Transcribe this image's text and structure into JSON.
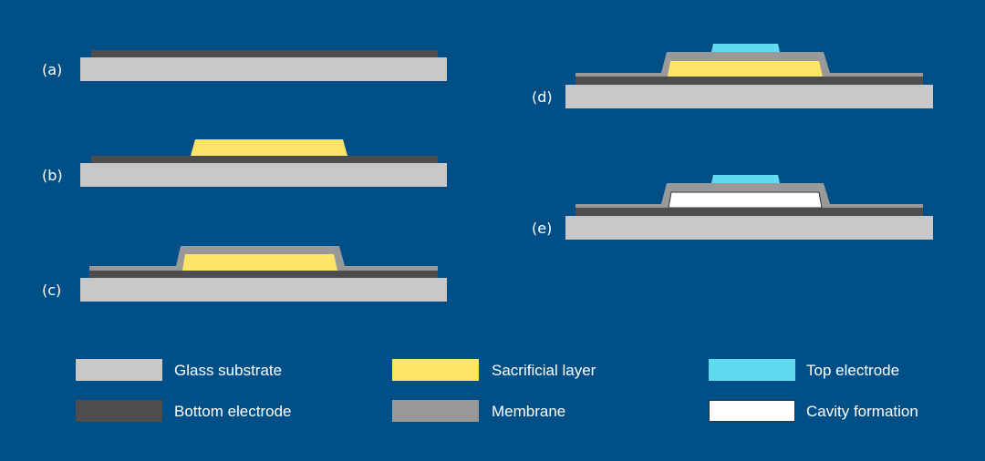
{
  "steps": [
    {
      "label": "(a)"
    },
    {
      "label": "(b)"
    },
    {
      "label": "(c)"
    },
    {
      "label": "(d)"
    },
    {
      "label": "(e)"
    }
  ],
  "legend": [
    {
      "label": "Glass substrate",
      "color": "#c8c8c8"
    },
    {
      "label": "Bottom electrode",
      "color": "#4d4d4d"
    },
    {
      "label": "Sacrificial layer",
      "color": "#ffe566"
    },
    {
      "label": "Membrane",
      "color": "#999999"
    },
    {
      "label": "Top electrode",
      "color": "#5fdaee"
    },
    {
      "label": "Cavity formation",
      "color": "#ffffff"
    }
  ],
  "colors": {
    "background": "#004f87"
  }
}
